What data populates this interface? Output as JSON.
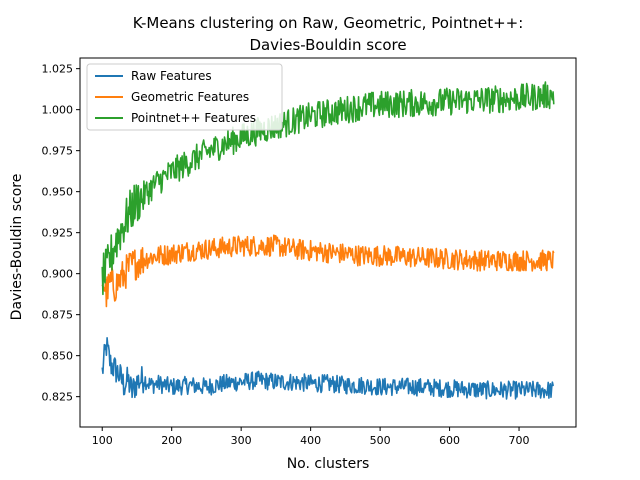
{
  "chart_data": {
    "type": "line",
    "title_line1": "K-Means clustering on Raw, Geometric, Pointnet++:",
    "title_line2": "Davies-Bouldin score",
    "xlabel": "No. clusters",
    "ylabel": "Davies-Bouldin score",
    "xlim": [
      68,
      782
    ],
    "ylim": [
      0.8065,
      1.0315
    ],
    "x_range": [
      100,
      750
    ],
    "x_ticks": [
      100,
      200,
      300,
      400,
      500,
      600,
      700
    ],
    "y_ticks": [
      0.825,
      0.85,
      0.875,
      0.9,
      0.925,
      0.95,
      0.975,
      1.0,
      1.025
    ],
    "x_tick_labels": [
      "100",
      "200",
      "300",
      "400",
      "500",
      "600",
      "700"
    ],
    "y_tick_labels": [
      "0.825",
      "0.850",
      "0.875",
      "0.900",
      "0.925",
      "0.950",
      "0.975",
      "1.000",
      "1.025"
    ],
    "grid": false,
    "legend_position": "top-left",
    "series": [
      {
        "name": "Raw Features",
        "color": "#1f77b4",
        "x": [
          100,
          106,
          112,
          118,
          125,
          131,
          137,
          143,
          150,
          160,
          170,
          180,
          200,
          225,
          250,
          275,
          300,
          325,
          350,
          375,
          400,
          425,
          450,
          475,
          500,
          550,
          600,
          650,
          700,
          750
        ],
        "values": [
          0.84,
          0.856,
          0.845,
          0.842,
          0.838,
          0.832,
          0.835,
          0.828,
          0.834,
          0.836,
          0.832,
          0.833,
          0.831,
          0.832,
          0.831,
          0.833,
          0.834,
          0.835,
          0.834,
          0.834,
          0.833,
          0.833,
          0.832,
          0.832,
          0.831,
          0.831,
          0.83,
          0.829,
          0.829,
          0.829
        ],
        "noise": 0.0055
      },
      {
        "name": "Geometric Features",
        "color": "#ff7f0e",
        "x": [
          100,
          106,
          112,
          118,
          125,
          131,
          137,
          143,
          150,
          160,
          170,
          180,
          200,
          225,
          250,
          275,
          300,
          325,
          350,
          375,
          400,
          425,
          450,
          475,
          500,
          550,
          600,
          650,
          700,
          750
        ],
        "values": [
          0.897,
          0.888,
          0.895,
          0.892,
          0.896,
          0.899,
          0.903,
          0.905,
          0.907,
          0.909,
          0.91,
          0.911,
          0.912,
          0.914,
          0.915,
          0.916,
          0.917,
          0.917,
          0.917,
          0.915,
          0.914,
          0.913,
          0.912,
          0.911,
          0.911,
          0.91,
          0.909,
          0.908,
          0.908,
          0.908
        ],
        "noise": 0.0065
      },
      {
        "name": "Pointnet++ Features",
        "color": "#2ca02c",
        "x": [
          100,
          106,
          112,
          118,
          125,
          131,
          137,
          143,
          150,
          160,
          170,
          180,
          200,
          225,
          250,
          275,
          300,
          325,
          350,
          375,
          400,
          425,
          450,
          475,
          500,
          550,
          600,
          650,
          700,
          750
        ],
        "values": [
          0.898,
          0.902,
          0.91,
          0.918,
          0.925,
          0.93,
          0.935,
          0.94,
          0.944,
          0.948,
          0.952,
          0.956,
          0.962,
          0.968,
          0.974,
          0.979,
          0.983,
          0.987,
          0.99,
          0.993,
          0.996,
          0.998,
          1.0,
          1.002,
          1.003,
          1.004,
          1.005,
          1.006,
          1.007,
          1.009
        ],
        "noise": 0.0085
      }
    ]
  }
}
